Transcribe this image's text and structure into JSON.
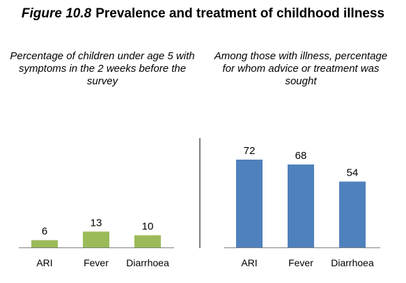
{
  "figure_number": "Figure 10.8",
  "title": "Prevalence and treatment of childhood illness",
  "chart_data": [
    {
      "type": "bar",
      "subtitle": "Percentage of children under age 5 with symptoms in the 2 weeks before the survey",
      "categories": [
        "ARI",
        "Fever",
        "Diarrhoea"
      ],
      "values": [
        6,
        13,
        10
      ],
      "data_labels": [
        "6",
        "13",
        "10"
      ],
      "color": "#9BBB59",
      "ylim": [
        0,
        100
      ],
      "grid": false
    },
    {
      "type": "bar",
      "subtitle": "Among those with illness, percentage for whom advice or treatment was sought",
      "categories": [
        "ARI",
        "Fever",
        "Diarrhoea"
      ],
      "values": [
        72,
        68,
        54
      ],
      "data_labels": [
        "72",
        "68",
        "54"
      ],
      "color": "#4F81BD",
      "ylim": [
        0,
        100
      ],
      "grid": false
    }
  ]
}
